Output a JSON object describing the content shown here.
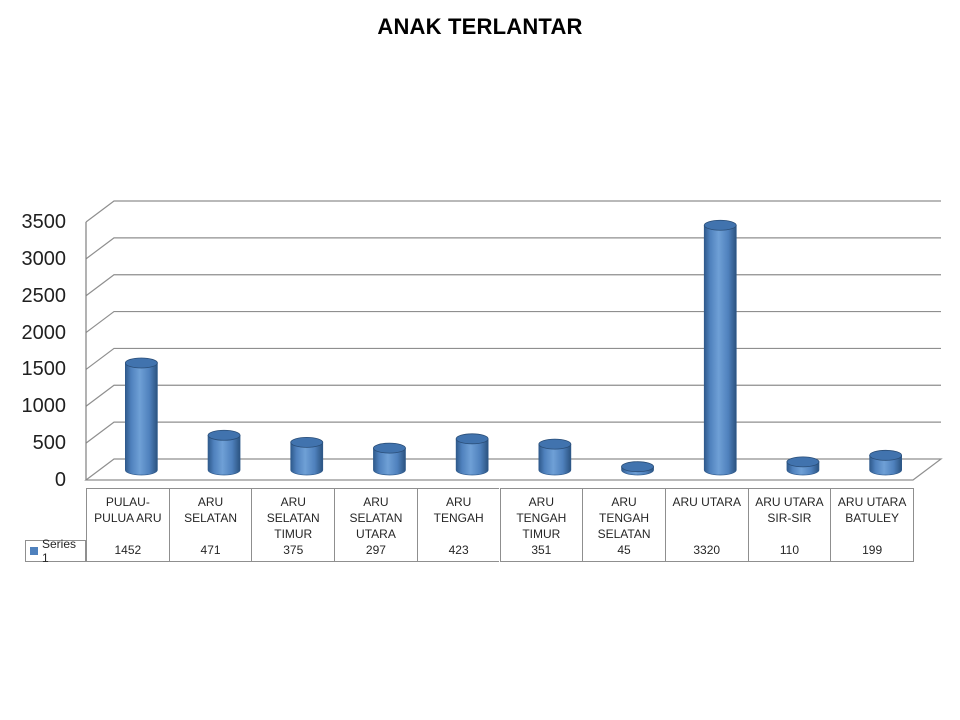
{
  "chart_data": {
    "type": "bar",
    "subtype": "cylinder-3d",
    "title": "ANAK TERLANTAR",
    "categories": [
      "PULAU-PULUA ARU",
      "ARU SELATAN",
      "ARU SELATAN TIMUR",
      "ARU SELATAN UTARA",
      "ARU TENGAH",
      "ARU TENGAH TIMUR",
      "ARU TENGAH SELATAN",
      "ARU UTARA",
      "ARU UTARA SIR-SIR",
      "ARU UTARA BATULEY"
    ],
    "category_lines": [
      [
        "PULAU-",
        "PULUA ARU"
      ],
      [
        "ARU",
        "SELATAN"
      ],
      [
        "ARU",
        "SELATAN",
        "TIMUR"
      ],
      [
        "ARU",
        "SELATAN",
        "UTARA"
      ],
      [
        "ARU",
        "TENGAH"
      ],
      [
        "ARU",
        "TENGAH",
        "TIMUR"
      ],
      [
        "ARU",
        "TENGAH",
        "SELATAN"
      ],
      [
        "ARU UTARA"
      ],
      [
        "ARU UTARA",
        "SIR-SIR"
      ],
      [
        "ARU UTARA",
        "BATULEY"
      ]
    ],
    "series": [
      {
        "name": "Series 1",
        "values": [
          1452,
          471,
          375,
          297,
          423,
          351,
          45,
          3320,
          110,
          199
        ]
      }
    ],
    "ylim": [
      0,
      3500
    ],
    "ytick_step": 500,
    "yticks": [
      0,
      500,
      1000,
      1500,
      2000,
      2500,
      3000,
      3500
    ],
    "grid": true,
    "legend_position": "bottom-left",
    "data_table_shown": true,
    "colors": {
      "bar": "#4F81BD",
      "bar_dark": "#2F5A8C",
      "bar_highlight": "#6FA0D6",
      "bar_top": "#4173AE",
      "gridline": "#8f8f8f",
      "axis": "#808080",
      "text": "#262626",
      "background": "#ffffff"
    }
  }
}
